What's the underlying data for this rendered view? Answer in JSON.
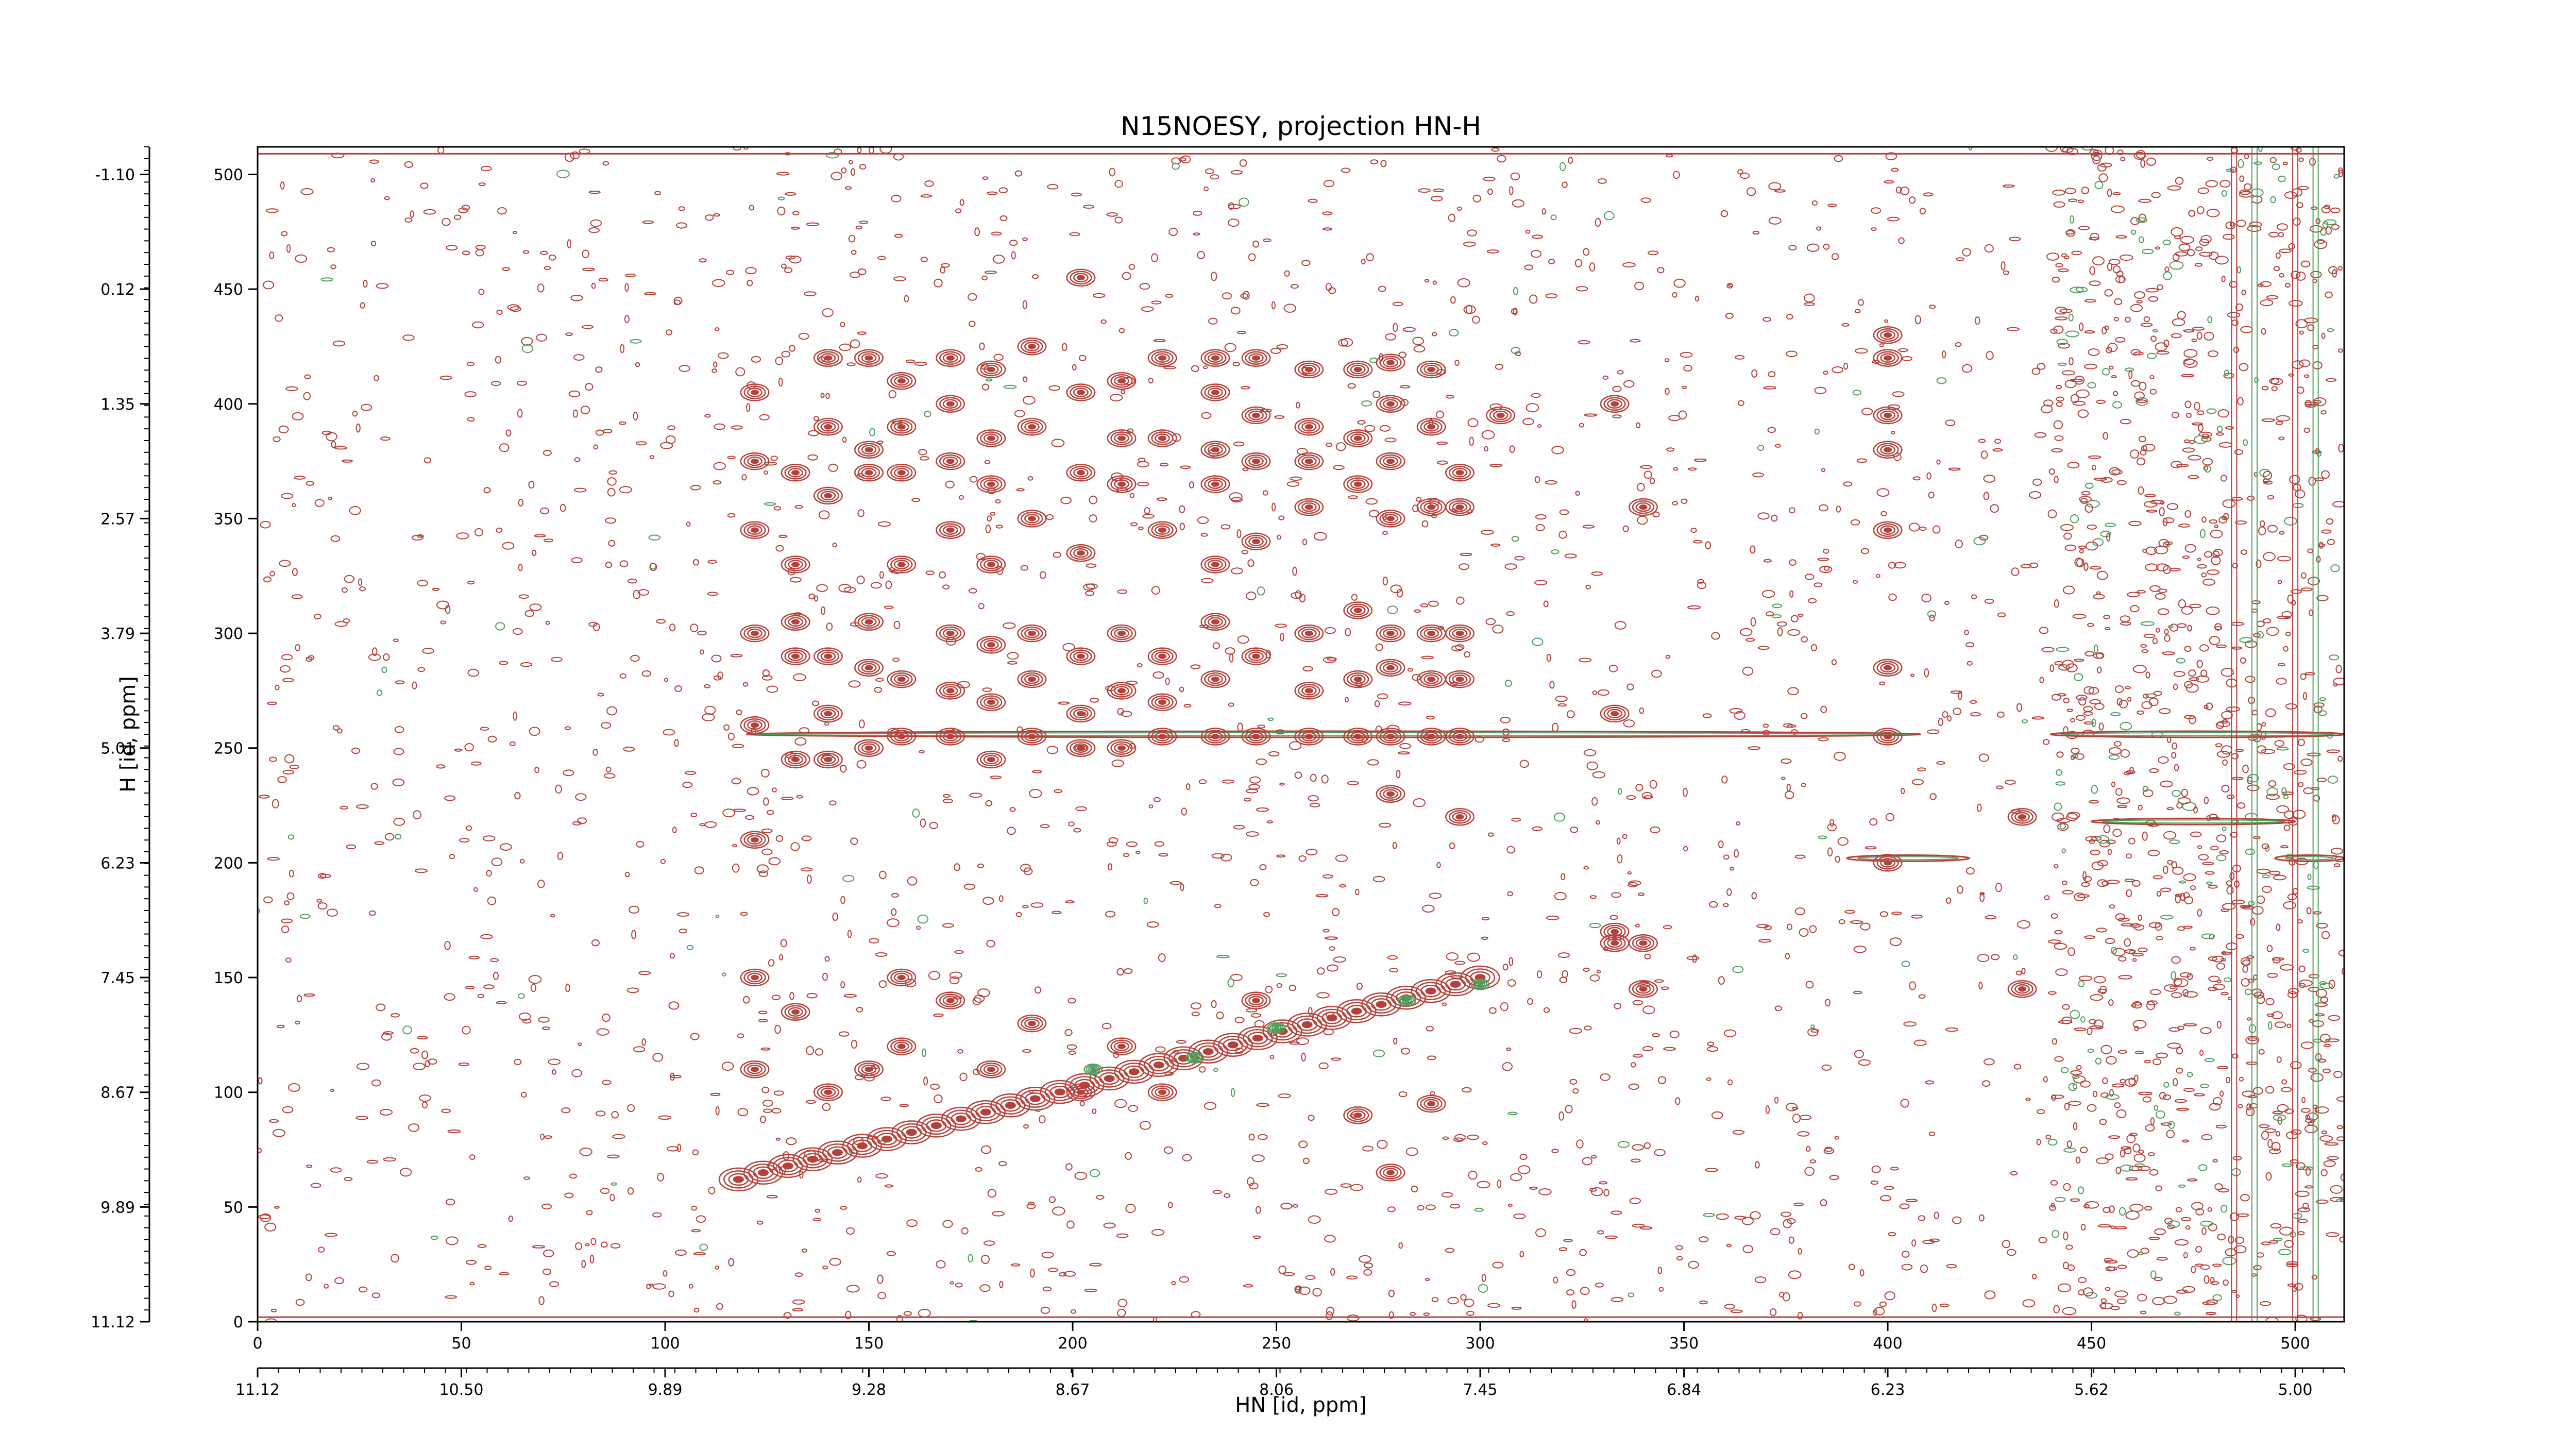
{
  "chart_data": {
    "type": "heatmap",
    "title": "N15NOESY, projection HN-H",
    "xlabel": "HN [id, ppm]",
    "ylabel": "H [id, ppm]",
    "xlim": [
      0,
      512
    ],
    "ylim": [
      0,
      512
    ],
    "x_index_ticks": [
      "0",
      "50",
      "100",
      "150",
      "200",
      "250",
      "300",
      "350",
      "400",
      "450",
      "500"
    ],
    "x_ppm_ticks": [
      "11.12",
      "10.50",
      "9.89",
      "9.28",
      "8.67",
      "8.06",
      "7.45",
      "6.84",
      "6.23",
      "5.62",
      "5.00"
    ],
    "y_index_ticks": [
      "0",
      "50",
      "100",
      "150",
      "200",
      "250",
      "300",
      "350",
      "400",
      "450",
      "500"
    ],
    "y_ppm_ticks": [
      "11.12",
      "9.89",
      "8.67",
      "7.45",
      "6.23",
      "5.01",
      "3.79",
      "2.57",
      "1.35",
      "0.12",
      "-1.10"
    ],
    "colors": {
      "positive": "#b5413a",
      "negative": "#4f9e5d"
    },
    "diagonal": {
      "x": [
        118,
        300
      ],
      "y": [
        62,
        150
      ]
    },
    "peak_columns": [
      {
        "x": 122,
        "y": [
          110,
          150,
          210,
          260,
          300,
          345,
          375,
          405
        ]
      },
      {
        "x": 132,
        "y": [
          135,
          245,
          290,
          305,
          330,
          370
        ]
      },
      {
        "x": 140,
        "y": [
          100,
          245,
          265,
          290,
          360,
          390,
          420
        ]
      },
      {
        "x": 150,
        "y": [
          110,
          250,
          285,
          305,
          370,
          380,
          420
        ]
      },
      {
        "x": 158,
        "y": [
          120,
          150,
          255,
          280,
          330,
          370,
          390,
          410
        ]
      },
      {
        "x": 170,
        "y": [
          140,
          255,
          275,
          300,
          345,
          375,
          400,
          420
        ]
      },
      {
        "x": 180,
        "y": [
          110,
          245,
          270,
          295,
          330,
          365,
          385,
          415
        ]
      },
      {
        "x": 190,
        "y": [
          130,
          255,
          280,
          300,
          350,
          390,
          425
        ]
      },
      {
        "x": 202,
        "y": [
          100,
          250,
          265,
          290,
          335,
          370,
          405,
          455
        ]
      },
      {
        "x": 212,
        "y": [
          120,
          250,
          275,
          300,
          365,
          385,
          410
        ]
      },
      {
        "x": 222,
        "y": [
          100,
          255,
          270,
          290,
          345,
          385,
          420
        ]
      },
      {
        "x": 235,
        "y": [
          255,
          280,
          305,
          330,
          365,
          380,
          405,
          420
        ]
      },
      {
        "x": 245,
        "y": [
          140,
          255,
          290,
          340,
          375,
          395,
          420
        ]
      },
      {
        "x": 258,
        "y": [
          255,
          275,
          300,
          355,
          375,
          390,
          415
        ]
      },
      {
        "x": 270,
        "y": [
          90,
          255,
          280,
          310,
          365,
          385,
          415
        ]
      },
      {
        "x": 278,
        "y": [
          65,
          230,
          255,
          285,
          300,
          350,
          375,
          400,
          418
        ]
      },
      {
        "x": 288,
        "y": [
          95,
          255,
          280,
          300,
          355,
          390,
          415
        ]
      },
      {
        "x": 295,
        "y": [
          220,
          255,
          280,
          300,
          355,
          370
        ]
      },
      {
        "x": 305,
        "y": [
          395
        ]
      },
      {
        "x": 333,
        "y": [
          165,
          170,
          265,
          400
        ]
      },
      {
        "x": 340,
        "y": [
          145,
          165,
          355
        ]
      },
      {
        "x": 400,
        "y": [
          200,
          255,
          285,
          345,
          380,
          395,
          420,
          430
        ]
      },
      {
        "x": 433,
        "y": [
          145,
          220
        ]
      }
    ],
    "horizontal_streaks": [
      {
        "y": 256,
        "x": [
          120,
          408
        ]
      },
      {
        "y": 202,
        "x": [
          390,
          420
        ]
      },
      {
        "y": 256,
        "x": [
          440,
          512
        ]
      },
      {
        "y": 218,
        "x": [
          450,
          500
        ]
      },
      {
        "y": 202,
        "x": [
          495,
          512
        ]
      }
    ],
    "vertical_streaks": [
      485,
      490,
      500,
      505
    ],
    "grid": false,
    "legend": "none"
  }
}
